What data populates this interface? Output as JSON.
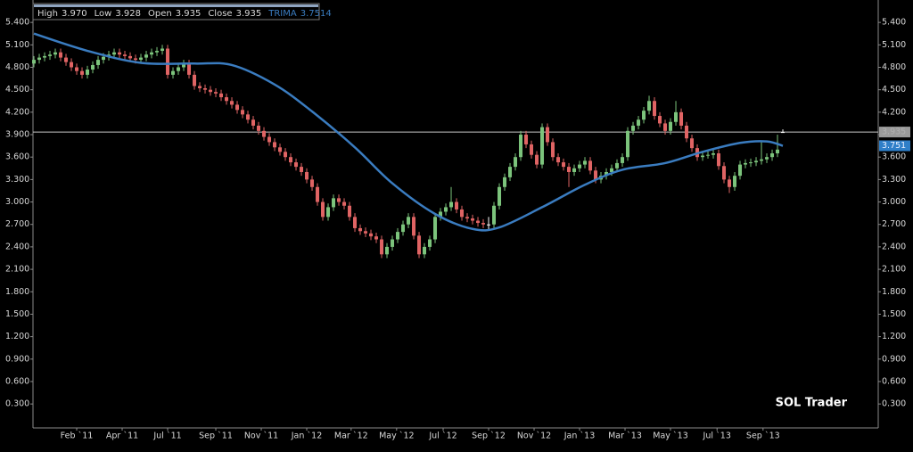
{
  "chart_data": {
    "type": "candlestick",
    "header": [
      {
        "label": "High",
        "value": "3.970"
      },
      {
        "label": "Low",
        "value": "3.928"
      },
      {
        "label": "Open",
        "value": "3.935"
      },
      {
        "label": "Close",
        "value": "3.935"
      },
      {
        "label": "TRIMA",
        "value": "3.7514"
      }
    ],
    "annotation": "SOL Trader",
    "up_color": "#7cc47c",
    "down_color": "#e06464",
    "flat_color": "#ffffff",
    "ylim": [
      -0.02,
      5.64
    ],
    "yticks": [
      {
        "value": 0.3,
        "label": "0.300"
      },
      {
        "value": 0.6,
        "label": "0.600"
      },
      {
        "value": 0.9,
        "label": "0.900"
      },
      {
        "value": 1.2,
        "label": "1.200"
      },
      {
        "value": 1.5,
        "label": "1.500"
      },
      {
        "value": 1.8,
        "label": "1.800"
      },
      {
        "value": 2.1,
        "label": "2.100"
      },
      {
        "value": 2.4,
        "label": "2.400"
      },
      {
        "value": 2.7,
        "label": "2.700"
      },
      {
        "value": 3.0,
        "label": "3.000"
      },
      {
        "value": 3.3,
        "label": "3.300"
      },
      {
        "value": 3.6,
        "label": "3.600"
      },
      {
        "value": 3.9,
        "label": "3.900"
      },
      {
        "value": 4.2,
        "label": "4.200"
      },
      {
        "value": 4.5,
        "label": "4.500"
      },
      {
        "value": 4.8,
        "label": "4.800"
      },
      {
        "value": 5.1,
        "label": "5.100"
      },
      {
        "value": 5.4,
        "label": "5.400"
      }
    ],
    "xlim": [
      -0.17,
      157.83
    ],
    "xticks": [
      {
        "value": 8,
        "label": "Feb `11"
      },
      {
        "value": 16.5,
        "label": "Apr `11"
      },
      {
        "value": 25,
        "label": "Jul `11"
      },
      {
        "value": 34,
        "label": "Sep `11"
      },
      {
        "value": 42.5,
        "label": "Nov `11"
      },
      {
        "value": 51,
        "label": "Jan `12"
      },
      {
        "value": 59.3,
        "label": "Mar `12"
      },
      {
        "value": 67.8,
        "label": "May `12"
      },
      {
        "value": 76.5,
        "label": "Jul `12"
      },
      {
        "value": 85,
        "label": "Sep `12"
      },
      {
        "value": 93.5,
        "label": "Nov `12"
      },
      {
        "value": 102,
        "label": "Jan `13"
      },
      {
        "value": 110.5,
        "label": "Mar `13"
      },
      {
        "value": 119,
        "label": "May `13"
      },
      {
        "value": 127.7,
        "label": "Jul `13"
      },
      {
        "value": 136.3,
        "label": "Sep `13"
      }
    ],
    "price_tags": [
      {
        "value": 3.935,
        "label": "3.935",
        "color": "#9a9a9a"
      },
      {
        "value": 3.7514,
        "label": "3.751",
        "color": "#2f7fc8"
      }
    ],
    "trima": {
      "name": "TRIMA",
      "color": "#3a7cc0",
      "x": [
        0,
        10,
        20,
        30,
        37,
        45,
        52,
        60,
        67,
        75,
        82,
        87,
        95,
        103,
        110,
        118,
        125,
        132,
        137,
        140
      ],
      "values": [
        5.25,
        5.02,
        4.86,
        4.85,
        4.83,
        4.57,
        4.21,
        3.73,
        3.25,
        2.84,
        2.64,
        2.66,
        2.93,
        3.23,
        3.43,
        3.52,
        3.67,
        3.79,
        3.81,
        3.75
      ]
    },
    "candles": [
      [
        4.85,
        4.95,
        4.8,
        4.9
      ],
      [
        4.9,
        4.98,
        4.85,
        4.93
      ],
      [
        4.93,
        5.0,
        4.88,
        4.95
      ],
      [
        4.95,
        5.02,
        4.9,
        4.97
      ],
      [
        4.97,
        5.05,
        4.92,
        5.0
      ],
      [
        5.0,
        5.05,
        4.88,
        4.93
      ],
      [
        4.93,
        4.98,
        4.82,
        4.87
      ],
      [
        4.87,
        4.92,
        4.75,
        4.8
      ],
      [
        4.8,
        4.85,
        4.7,
        4.75
      ],
      [
        4.75,
        4.8,
        4.65,
        4.7
      ],
      [
        4.7,
        4.82,
        4.65,
        4.77
      ],
      [
        4.77,
        4.88,
        4.72,
        4.83
      ],
      [
        4.83,
        4.95,
        4.78,
        4.9
      ],
      [
        4.9,
        4.99,
        4.85,
        4.94
      ],
      [
        4.94,
        5.02,
        4.89,
        4.97
      ],
      [
        4.97,
        5.05,
        4.92,
        5.0
      ],
      [
        5.0,
        5.05,
        4.92,
        4.97
      ],
      [
        4.97,
        5.02,
        4.9,
        4.95
      ],
      [
        4.95,
        5.0,
        4.87,
        4.92
      ],
      [
        4.92,
        4.97,
        4.85,
        4.9
      ],
      [
        4.9,
        4.98,
        4.85,
        4.93
      ],
      [
        4.93,
        5.02,
        4.88,
        4.97
      ],
      [
        4.97,
        5.05,
        4.92,
        5.0
      ],
      [
        5.0,
        5.07,
        4.95,
        5.02
      ],
      [
        5.02,
        5.1,
        4.97,
        5.05
      ],
      [
        5.05,
        5.1,
        4.65,
        4.7
      ],
      [
        4.7,
        4.8,
        4.65,
        4.75
      ],
      [
        4.75,
        4.85,
        4.7,
        4.8
      ],
      [
        4.8,
        4.9,
        4.75,
        4.85
      ],
      [
        4.85,
        4.9,
        4.65,
        4.7
      ],
      [
        4.7,
        4.75,
        4.5,
        4.55
      ],
      [
        4.55,
        4.6,
        4.47,
        4.52
      ],
      [
        4.52,
        4.57,
        4.45,
        4.5
      ],
      [
        4.5,
        4.55,
        4.42,
        4.47
      ],
      [
        4.47,
        4.52,
        4.4,
        4.45
      ],
      [
        4.45,
        4.5,
        4.35,
        4.4
      ],
      [
        4.4,
        4.45,
        4.3,
        4.35
      ],
      [
        4.35,
        4.4,
        4.25,
        4.3
      ],
      [
        4.3,
        4.35,
        4.18,
        4.23
      ],
      [
        4.23,
        4.28,
        4.12,
        4.17
      ],
      [
        4.17,
        4.22,
        4.05,
        4.1
      ],
      [
        4.1,
        4.15,
        3.97,
        4.02
      ],
      [
        4.02,
        4.07,
        3.9,
        3.95
      ],
      [
        3.95,
        4.0,
        3.82,
        3.87
      ],
      [
        3.87,
        3.92,
        3.75,
        3.8
      ],
      [
        3.8,
        3.85,
        3.68,
        3.73
      ],
      [
        3.73,
        3.78,
        3.62,
        3.67
      ],
      [
        3.67,
        3.72,
        3.55,
        3.6
      ],
      [
        3.6,
        3.65,
        3.48,
        3.53
      ],
      [
        3.53,
        3.58,
        3.42,
        3.47
      ],
      [
        3.47,
        3.52,
        3.35,
        3.4
      ],
      [
        3.4,
        3.45,
        3.25,
        3.3
      ],
      [
        3.3,
        3.35,
        3.15,
        3.2
      ],
      [
        3.2,
        3.25,
        2.95,
        3.0
      ],
      [
        3.0,
        3.05,
        2.75,
        2.8
      ],
      [
        2.8,
        2.98,
        2.75,
        2.93
      ],
      [
        2.93,
        3.1,
        2.88,
        3.05
      ],
      [
        3.05,
        3.1,
        2.95,
        3.0
      ],
      [
        3.0,
        3.05,
        2.9,
        2.95
      ],
      [
        2.95,
        3.0,
        2.75,
        2.8
      ],
      [
        2.8,
        2.85,
        2.6,
        2.65
      ],
      [
        2.65,
        2.7,
        2.56,
        2.61
      ],
      [
        2.61,
        2.66,
        2.53,
        2.58
      ],
      [
        2.58,
        2.63,
        2.49,
        2.54
      ],
      [
        2.54,
        2.59,
        2.45,
        2.5
      ],
      [
        2.5,
        2.55,
        2.25,
        2.3
      ],
      [
        2.3,
        2.45,
        2.25,
        2.4
      ],
      [
        2.4,
        2.55,
        2.35,
        2.5
      ],
      [
        2.5,
        2.65,
        2.45,
        2.6
      ],
      [
        2.6,
        2.75,
        2.55,
        2.7
      ],
      [
        2.7,
        2.85,
        2.65,
        2.8
      ],
      [
        2.8,
        2.85,
        2.5,
        2.55
      ],
      [
        2.55,
        2.6,
        2.25,
        2.3
      ],
      [
        2.3,
        2.45,
        2.25,
        2.4
      ],
      [
        2.4,
        2.55,
        2.35,
        2.5
      ],
      [
        2.5,
        2.85,
        2.45,
        2.8
      ],
      [
        2.8,
        2.92,
        2.75,
        2.87
      ],
      [
        2.87,
        2.98,
        2.82,
        2.93
      ],
      [
        2.93,
        3.2,
        2.88,
        3.0
      ],
      [
        3.0,
        3.05,
        2.85,
        2.9
      ],
      [
        2.9,
        2.95,
        2.75,
        2.8
      ],
      [
        2.8,
        2.85,
        2.73,
        2.78
      ],
      [
        2.78,
        2.83,
        2.7,
        2.75
      ],
      [
        2.75,
        2.8,
        2.67,
        2.72
      ],
      [
        2.72,
        2.77,
        2.65,
        2.7
      ],
      [
        2.7,
        2.8,
        2.62,
        2.7
      ],
      [
        2.7,
        3.0,
        2.65,
        2.95
      ],
      [
        2.95,
        3.25,
        2.9,
        3.2
      ],
      [
        3.2,
        3.38,
        3.15,
        3.33
      ],
      [
        3.33,
        3.52,
        3.28,
        3.47
      ],
      [
        3.47,
        3.65,
        3.42,
        3.6
      ],
      [
        3.6,
        3.95,
        3.55,
        3.9
      ],
      [
        3.9,
        3.95,
        3.72,
        3.77
      ],
      [
        3.77,
        3.82,
        3.58,
        3.63
      ],
      [
        3.63,
        3.68,
        3.45,
        3.5
      ],
      [
        3.5,
        4.05,
        3.45,
        4.0
      ],
      [
        4.0,
        4.05,
        3.75,
        3.8
      ],
      [
        3.8,
        3.85,
        3.55,
        3.6
      ],
      [
        3.6,
        3.65,
        3.48,
        3.53
      ],
      [
        3.53,
        3.58,
        3.42,
        3.47
      ],
      [
        3.47,
        3.52,
        3.2,
        3.4
      ],
      [
        3.4,
        3.5,
        3.35,
        3.45
      ],
      [
        3.45,
        3.55,
        3.4,
        3.5
      ],
      [
        3.5,
        3.6,
        3.45,
        3.55
      ],
      [
        3.55,
        3.6,
        3.37,
        3.42
      ],
      [
        3.42,
        3.47,
        3.25,
        3.3
      ],
      [
        3.3,
        3.4,
        3.25,
        3.35
      ],
      [
        3.35,
        3.45,
        3.3,
        3.4
      ],
      [
        3.4,
        3.5,
        3.35,
        3.45
      ],
      [
        3.45,
        3.57,
        3.4,
        3.52
      ],
      [
        3.52,
        3.65,
        3.47,
        3.6
      ],
      [
        3.6,
        4.0,
        3.55,
        3.95
      ],
      [
        3.95,
        4.07,
        3.9,
        4.02
      ],
      [
        4.02,
        4.15,
        3.97,
        4.1
      ],
      [
        4.1,
        4.27,
        4.05,
        4.22
      ],
      [
        4.22,
        4.42,
        4.17,
        4.35
      ],
      [
        4.35,
        4.4,
        4.1,
        4.15
      ],
      [
        4.15,
        4.2,
        4.0,
        4.05
      ],
      [
        4.05,
        4.1,
        3.9,
        3.95
      ],
      [
        3.95,
        4.12,
        3.9,
        4.07
      ],
      [
        4.07,
        4.35,
        4.02,
        4.2
      ],
      [
        4.2,
        4.25,
        3.97,
        4.02
      ],
      [
        4.02,
        4.07,
        3.8,
        3.85
      ],
      [
        3.85,
        3.9,
        3.67,
        3.72
      ],
      [
        3.72,
        3.77,
        3.55,
        3.6
      ],
      [
        3.6,
        3.67,
        3.55,
        3.62
      ],
      [
        3.62,
        3.68,
        3.58,
        3.63
      ],
      [
        3.63,
        3.7,
        3.58,
        3.65
      ],
      [
        3.65,
        3.7,
        3.43,
        3.48
      ],
      [
        3.48,
        3.53,
        3.25,
        3.3
      ],
      [
        3.3,
        3.35,
        3.12,
        3.2
      ],
      [
        3.2,
        3.4,
        3.15,
        3.35
      ],
      [
        3.35,
        3.55,
        3.3,
        3.5
      ],
      [
        3.5,
        3.57,
        3.45,
        3.52
      ],
      [
        3.52,
        3.58,
        3.47,
        3.53
      ],
      [
        3.53,
        3.6,
        3.48,
        3.55
      ],
      [
        3.55,
        3.8,
        3.5,
        3.57
      ],
      [
        3.57,
        3.65,
        3.52,
        3.6
      ],
      [
        3.6,
        3.7,
        3.55,
        3.65
      ],
      [
        3.65,
        3.9,
        3.6,
        3.7
      ],
      [
        3.935,
        3.97,
        3.928,
        3.935
      ]
    ]
  }
}
